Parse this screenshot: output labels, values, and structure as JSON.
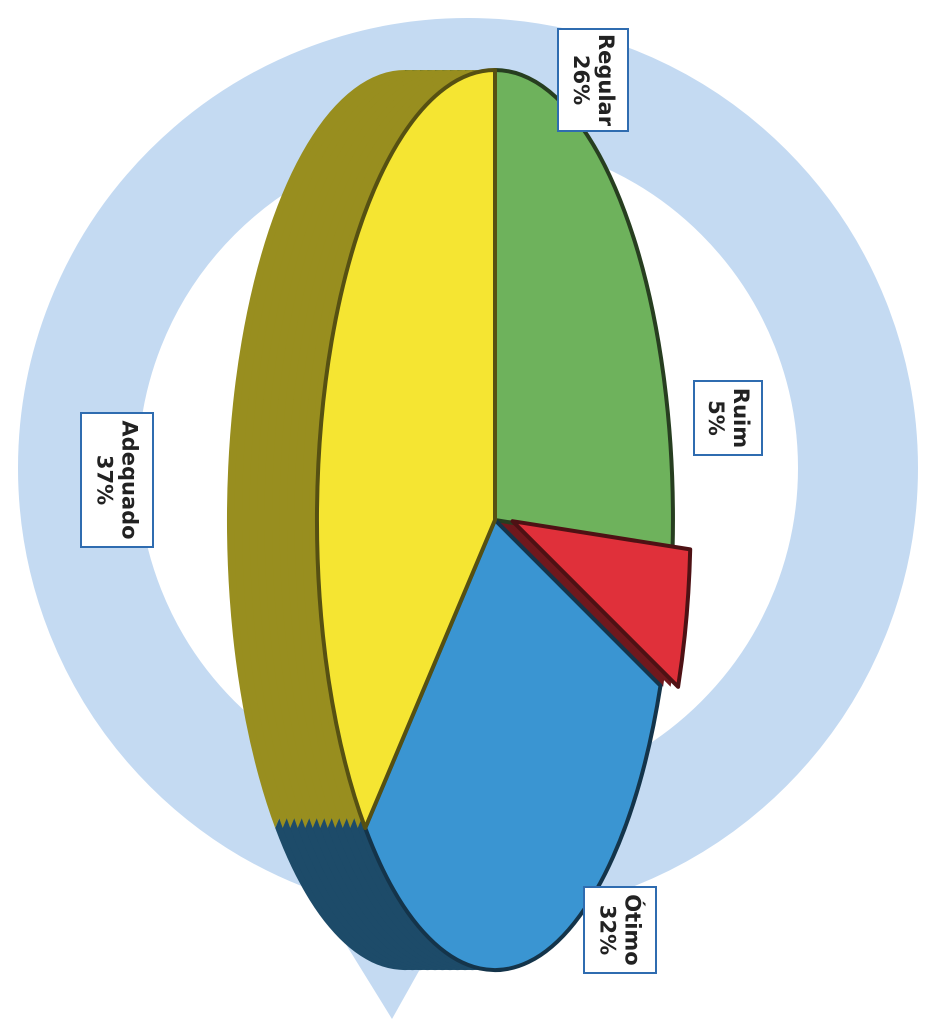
{
  "chart_data": {
    "type": "pie",
    "title": "",
    "categories": [
      "Regular",
      "Ruim",
      "Ótimo",
      "Adequado"
    ],
    "values": [
      26,
      5,
      32,
      37
    ],
    "value_labels": [
      "26%",
      "5%",
      "32%",
      "37%"
    ],
    "colors": [
      "#6eb25c",
      "#e0303a",
      "#3a95d2",
      "#f5e532"
    ],
    "exploded": [
      "Ruim"
    ],
    "style": "3d",
    "background_ring_color": "#c4daf2",
    "label_border_color": "#2f6cb0"
  }
}
